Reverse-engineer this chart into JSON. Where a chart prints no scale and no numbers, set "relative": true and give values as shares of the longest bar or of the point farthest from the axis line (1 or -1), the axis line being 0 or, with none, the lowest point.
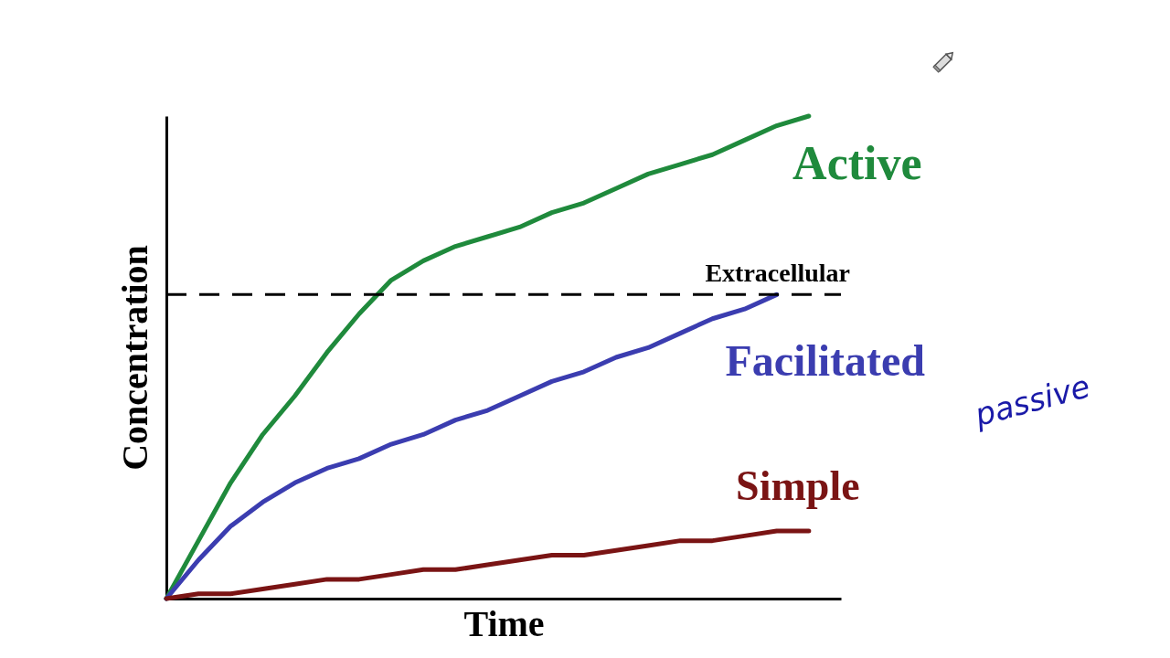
{
  "chart_data": {
    "type": "line",
    "relative": true,
    "xlabel": "Time",
    "ylabel": "Concentration",
    "legend": false,
    "categories": [
      null,
      null,
      null,
      null,
      null,
      null,
      null,
      null,
      null,
      null,
      null,
      null,
      null,
      null,
      null,
      null,
      null,
      null,
      null,
      null,
      null,
      null
    ],
    "series": [
      {
        "name": "Active",
        "color": "#1f8a3c",
        "values": [
          0,
          0.12,
          0.24,
          0.34,
          0.42,
          0.51,
          0.59,
          0.66,
          0.7,
          0.73,
          0.75,
          0.77,
          0.8,
          0.82,
          0.85,
          0.88,
          0.9,
          0.92,
          0.95,
          0.98,
          1,
          null
        ]
      },
      {
        "name": "Facilitated",
        "color": "#3b3db0",
        "values": [
          0,
          0.08,
          0.15,
          0.2,
          0.24,
          0.27,
          0.29,
          0.32,
          0.34,
          0.37,
          0.39,
          0.42,
          0.45,
          0.47,
          0.5,
          0.52,
          0.55,
          0.58,
          0.6,
          0.63,
          null,
          null
        ]
      },
      {
        "name": "Simple",
        "color": "#7a1414",
        "values": [
          0,
          0.01,
          0.01,
          0.02,
          0.03,
          0.04,
          0.04,
          0.05,
          0.06,
          0.06,
          0.07,
          0.08,
          0.09,
          0.09,
          0.1,
          0.11,
          0.12,
          0.12,
          0.13,
          0.14,
          0.14,
          null
        ]
      }
    ],
    "ref_lines": [
      {
        "axis": "y",
        "value": 0.63,
        "label": "Extracellular",
        "color": "#000000",
        "line_style": "dashed"
      }
    ],
    "annotations": [
      "passive"
    ]
  }
}
